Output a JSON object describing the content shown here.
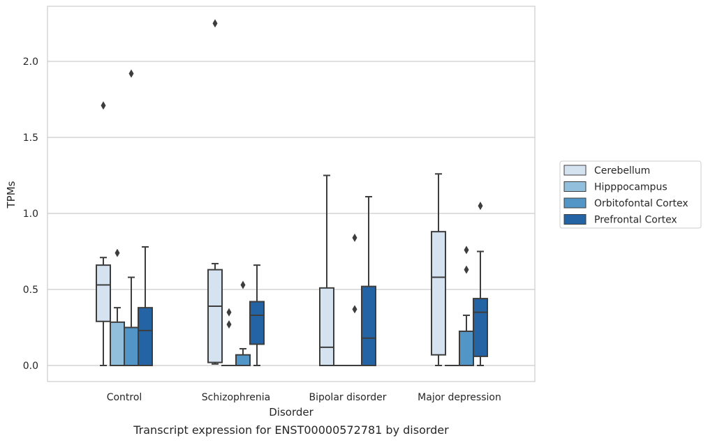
{
  "chart_data": {
    "type": "box",
    "caption": "Transcript expression for ENST00000572781 by disorder",
    "xlabel": "Disorder",
    "ylabel": "TPMs",
    "ylim": [
      -0.11,
      2.37
    ],
    "yticks": [
      0.0,
      0.5,
      1.0,
      1.5,
      2.0
    ],
    "ytick_labels": [
      "0.0",
      "0.5",
      "1.0",
      "1.5",
      "2.0"
    ],
    "grid": "horizontal",
    "legend_position": "right",
    "categories": [
      "Control",
      "Schizophrenia",
      "Bipolar disorder",
      "Major depression"
    ],
    "series": [
      {
        "name": "Cerebellum",
        "color": "#d5e3f1",
        "boxes": [
          {
            "whislo": 0.0,
            "q1": 0.29,
            "med": 0.53,
            "q3": 0.66,
            "whishi": 0.71,
            "fliers": [
              1.71
            ]
          },
          {
            "whislo": 0.01,
            "q1": 0.02,
            "med": 0.39,
            "q3": 0.63,
            "whishi": 0.67,
            "fliers": [
              2.25
            ]
          },
          {
            "whislo": 0.0,
            "q1": 0.0,
            "med": 0.12,
            "q3": 0.51,
            "whishi": 1.25,
            "fliers": []
          },
          {
            "whislo": 0.0,
            "q1": 0.07,
            "med": 0.58,
            "q3": 0.88,
            "whishi": 1.26,
            "fliers": []
          }
        ]
      },
      {
        "name": "Hipppocampus",
        "color": "#92bfdb",
        "boxes": [
          {
            "whislo": 0.0,
            "q1": 0.0,
            "med": 0.0,
            "q3": 0.285,
            "whishi": 0.38,
            "fliers": [
              0.74
            ]
          },
          {
            "whislo": 0.0,
            "q1": 0.0,
            "med": 0.0,
            "q3": 0.0,
            "whishi": 0.0,
            "fliers": [
              0.35,
              0.27
            ]
          },
          {
            "whislo": 0.0,
            "q1": 0.0,
            "med": 0.0,
            "q3": 0.0,
            "whishi": 0.0,
            "fliers": []
          },
          {
            "whislo": 0.0,
            "q1": 0.0,
            "med": 0.0,
            "q3": 0.0,
            "whishi": 0.0,
            "fliers": []
          }
        ]
      },
      {
        "name": "Orbitofontal Cortex",
        "color": "#5196c6",
        "boxes": [
          {
            "whislo": 0.0,
            "q1": 0.0,
            "med": 0.0,
            "q3": 0.25,
            "whishi": 0.58,
            "fliers": [
              1.92
            ]
          },
          {
            "whislo": 0.0,
            "q1": 0.0,
            "med": 0.0,
            "q3": 0.07,
            "whishi": 0.11,
            "fliers": [
              0.53
            ]
          },
          {
            "whislo": 0.0,
            "q1": 0.0,
            "med": 0.0,
            "q3": 0.0,
            "whishi": 0.0,
            "fliers": [
              0.84,
              0.37
            ]
          },
          {
            "whislo": 0.0,
            "q1": 0.0,
            "med": 0.0,
            "q3": 0.225,
            "whishi": 0.33,
            "fliers": [
              0.76,
              0.63
            ]
          }
        ]
      },
      {
        "name": "Prefrontal Cortex",
        "color": "#2464a5",
        "boxes": [
          {
            "whislo": 0.0,
            "q1": 0.0,
            "med": 0.23,
            "q3": 0.38,
            "whishi": 0.78,
            "fliers": []
          },
          {
            "whislo": 0.0,
            "q1": 0.14,
            "med": 0.33,
            "q3": 0.42,
            "whishi": 0.66,
            "fliers": []
          },
          {
            "whislo": 0.0,
            "q1": 0.0,
            "med": 0.18,
            "q3": 0.52,
            "whishi": 1.11,
            "fliers": []
          },
          {
            "whislo": 0.0,
            "q1": 0.06,
            "med": 0.35,
            "q3": 0.44,
            "whishi": 0.75,
            "fliers": [
              1.05
            ]
          }
        ]
      }
    ]
  }
}
